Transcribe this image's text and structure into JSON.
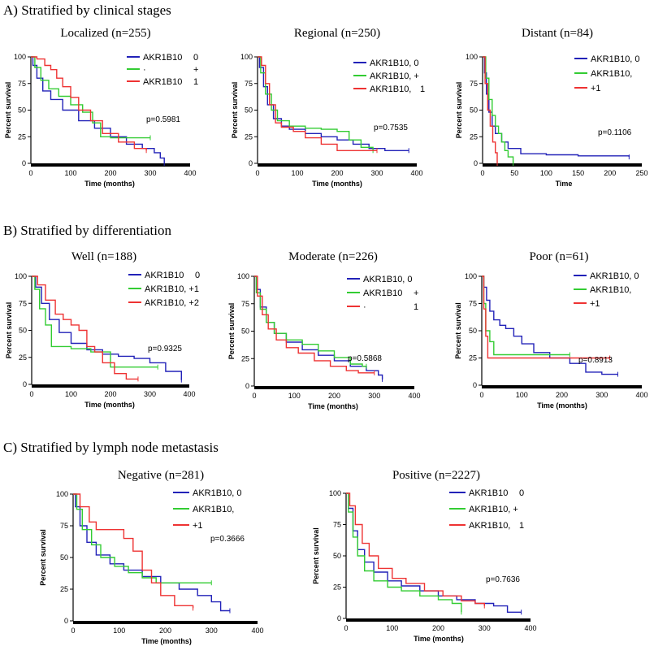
{
  "figure": {
    "section_a": "A) Stratified by clinical stages",
    "section_b": "B) Stratified by differentiation",
    "section_c": "C) Stratified by lymph node metastasis"
  },
  "colors": {
    "blue": "#2222b8",
    "green": "#33cc33",
    "red": "#ee3333",
    "axis": "#000000"
  },
  "chart_data": [
    {
      "id": "localized",
      "type": "line",
      "title": "Localized (n=255)",
      "xlabel": "Time (months)",
      "ylabel": "Percent survival",
      "xlim": [
        0,
        400
      ],
      "ylim": [
        0,
        100
      ],
      "xticks": [
        "0",
        "100",
        "200",
        "300",
        "400"
      ],
      "yticks": [
        "0",
        "25",
        "50",
        "75",
        "100"
      ],
      "pvalue": "p=0.5981",
      "legend": [
        {
          "color": "blue",
          "label": "AKR1B10",
          "tag": "0"
        },
        {
          "color": "green",
          "label": "·",
          "tag": "+"
        },
        {
          "color": "red",
          "label": "AKR1B10",
          "tag": "1"
        }
      ],
      "series": [
        {
          "name": "AKR1B10 0",
          "color": "blue",
          "x": [
            0,
            5,
            15,
            30,
            50,
            80,
            120,
            160,
            200,
            240,
            280,
            310,
            325,
            335
          ],
          "y": [
            100,
            92,
            80,
            68,
            60,
            50,
            40,
            33,
            25,
            18,
            14,
            10,
            5,
            0
          ]
        },
        {
          "name": "AKR1B10 +",
          "color": "green",
          "x": [
            0,
            10,
            25,
            45,
            70,
            100,
            130,
            155,
            175,
            200,
            250,
            300
          ],
          "y": [
            100,
            90,
            78,
            70,
            63,
            55,
            48,
            38,
            25,
            24,
            24,
            24
          ]
        },
        {
          "name": "AKR1B10 1",
          "color": "red",
          "x": [
            0,
            15,
            35,
            50,
            65,
            80,
            100,
            120,
            150,
            180,
            220,
            260,
            290
          ],
          "y": [
            100,
            98,
            92,
            88,
            80,
            72,
            62,
            50,
            40,
            28,
            20,
            14,
            12
          ]
        }
      ]
    },
    {
      "id": "regional",
      "type": "line",
      "title": "Regional (n=250)",
      "xlabel": "Time (months)",
      "ylabel": "Percent survival",
      "xlim": [
        0,
        400
      ],
      "ylim": [
        0,
        100
      ],
      "xticks": [
        "0",
        "100",
        "200",
        "300",
        "400"
      ],
      "yticks": [
        "0",
        "25",
        "50",
        "75",
        "100"
      ],
      "pvalue": "p=0.7535",
      "legend": [
        {
          "color": "blue",
          "label": "AKR1B10, 0",
          "tag": ""
        },
        {
          "color": "green",
          "label": "AKR1B10, +",
          "tag": ""
        },
        {
          "color": "red",
          "label": "AKR1B10,",
          "tag": "1"
        }
      ],
      "series": [
        {
          "name": "AKR1B10 0",
          "color": "blue",
          "x": [
            0,
            5,
            15,
            25,
            40,
            60,
            80,
            120,
            160,
            200,
            240,
            280,
            320,
            380
          ],
          "y": [
            100,
            90,
            72,
            55,
            42,
            35,
            32,
            28,
            25,
            22,
            18,
            14,
            12,
            12
          ]
        },
        {
          "name": "AKR1B10 +",
          "color": "green",
          "x": [
            0,
            8,
            20,
            35,
            50,
            80,
            120,
            160,
            200,
            230,
            260,
            290
          ],
          "y": [
            100,
            85,
            65,
            50,
            40,
            35,
            33,
            32,
            30,
            22,
            15,
            12
          ]
        },
        {
          "name": "AKR1B10 1",
          "color": "red",
          "x": [
            0,
            10,
            20,
            30,
            45,
            60,
            90,
            120,
            160,
            200,
            260,
            300
          ],
          "y": [
            100,
            92,
            75,
            55,
            38,
            34,
            30,
            24,
            18,
            12,
            12,
            12
          ]
        }
      ]
    },
    {
      "id": "distant",
      "type": "line",
      "title": "Distant (n=84)",
      "xlabel": "Time",
      "ylabel": "Percent survival",
      "xlim": [
        0,
        250
      ],
      "ylim": [
        0,
        100
      ],
      "xticks": [
        "0",
        "50",
        "100",
        "150",
        "200",
        "250"
      ],
      "yticks": [
        "0",
        "25",
        "50",
        "75",
        "100"
      ],
      "pvalue": "p=0.1106",
      "legend": [
        {
          "color": "blue",
          "label": "AKR1B10, 0",
          "tag": ""
        },
        {
          "color": "green",
          "label": "AKR1B10,",
          "tag": ""
        },
        {
          "color": "red",
          "label": "+1",
          "tag": ""
        }
      ],
      "series": [
        {
          "name": "AKR1B10 0",
          "color": "blue",
          "x": [
            0,
            3,
            6,
            10,
            15,
            20,
            30,
            40,
            60,
            100,
            150,
            230
          ],
          "y": [
            100,
            85,
            65,
            48,
            35,
            28,
            20,
            14,
            9,
            8,
            7,
            6
          ]
        },
        {
          "name": "AKR1B10 +",
          "color": "green",
          "x": [
            0,
            5,
            10,
            15,
            20,
            25,
            30,
            35,
            40,
            48
          ],
          "y": [
            100,
            80,
            60,
            45,
            35,
            28,
            20,
            12,
            6,
            0
          ]
        },
        {
          "name": "AKR1B10 1",
          "color": "red",
          "x": [
            0,
            4,
            8,
            12,
            16,
            20,
            23
          ],
          "y": [
            100,
            75,
            50,
            35,
            20,
            10,
            0
          ]
        }
      ]
    },
    {
      "id": "well",
      "type": "line",
      "title": "Well (n=188)",
      "xlabel": "Time (months)",
      "ylabel": "Percent survival",
      "xlim": [
        0,
        400
      ],
      "ylim": [
        0,
        100
      ],
      "xticks": [
        "0",
        "100",
        "200",
        "300",
        "400"
      ],
      "yticks": [
        "0",
        "25",
        "50",
        "75",
        "100"
      ],
      "pvalue": "p=0.9325",
      "legend": [
        {
          "color": "blue",
          "label": "AKR1B10",
          "tag": "0"
        },
        {
          "color": "green",
          "label": "AKR1B10, +1",
          "tag": ""
        },
        {
          "color": "red",
          "label": "AKR1B10, +2",
          "tag": ""
        }
      ],
      "series": [
        {
          "name": "AKR1B10 0",
          "color": "blue",
          "x": [
            0,
            10,
            25,
            45,
            70,
            100,
            140,
            180,
            220,
            260,
            300,
            340,
            380
          ],
          "y": [
            100,
            90,
            75,
            60,
            48,
            38,
            32,
            28,
            26,
            24,
            20,
            12,
            4
          ]
        },
        {
          "name": "AKR1B10 +1",
          "color": "green",
          "x": [
            0,
            8,
            20,
            35,
            50,
            70,
            100,
            150,
            200,
            250,
            320
          ],
          "y": [
            100,
            88,
            70,
            55,
            35,
            35,
            33,
            30,
            16,
            16,
            16
          ]
        },
        {
          "name": "AKR1B10 +2",
          "color": "red",
          "x": [
            0,
            15,
            35,
            60,
            80,
            100,
            120,
            140,
            160,
            180,
            210,
            240,
            270
          ],
          "y": [
            100,
            92,
            78,
            65,
            60,
            55,
            50,
            35,
            30,
            20,
            10,
            5,
            5
          ]
        }
      ]
    },
    {
      "id": "moderate",
      "type": "line",
      "title": "Moderate (n=226)",
      "xlabel": "Time (months)",
      "ylabel": "Percent survival",
      "xlim": [
        0,
        400
      ],
      "ylim": [
        0,
        100
      ],
      "xticks": [
        "0",
        "100",
        "200",
        "300",
        "400"
      ],
      "yticks": [
        "0",
        "25",
        "50",
        "75",
        "100"
      ],
      "pvalue": "p=0.5868",
      "legend": [
        {
          "color": "blue",
          "label": "AKR1B10, 0",
          "tag": ""
        },
        {
          "color": "green",
          "label": "AKR1B10",
          "tag": "+"
        },
        {
          "color": "red",
          "label": "·",
          "tag": "1"
        }
      ],
      "series": [
        {
          "name": "AKR1B10 0",
          "color": "blue",
          "x": [
            0,
            5,
            15,
            30,
            50,
            80,
            120,
            160,
            200,
            240,
            280,
            310,
            320
          ],
          "y": [
            100,
            88,
            72,
            58,
            48,
            40,
            33,
            28,
            23,
            18,
            14,
            10,
            6
          ]
        },
        {
          "name": "AKR1B10 +",
          "color": "green",
          "x": [
            0,
            5,
            15,
            30,
            50,
            80,
            120,
            160,
            200,
            240,
            270,
            280
          ],
          "y": [
            100,
            85,
            70,
            58,
            48,
            42,
            38,
            32,
            26,
            20,
            18,
            18
          ]
        },
        {
          "name": "AKR1B10 1",
          "color": "red",
          "x": [
            0,
            8,
            20,
            35,
            55,
            80,
            110,
            150,
            190,
            230,
            260,
            300
          ],
          "y": [
            100,
            82,
            65,
            52,
            42,
            35,
            30,
            23,
            18,
            14,
            12,
            12
          ]
        }
      ]
    },
    {
      "id": "poor",
      "type": "line",
      "title": "Poor (n=61)",
      "xlabel": "Time (months)",
      "ylabel": "Percent survival",
      "xlim": [
        0,
        400
      ],
      "ylim": [
        0,
        100
      ],
      "xticks": [
        "0",
        "100",
        "200",
        "300",
        "400"
      ],
      "yticks": [
        "0",
        "25",
        "50",
        "75",
        "100"
      ],
      "pvalue": "p=0.8913",
      "legend": [
        {
          "color": "blue",
          "label": "AKR1B10, 0",
          "tag": ""
        },
        {
          "color": "green",
          "label": "AKR1B10,",
          "tag": ""
        },
        {
          "color": "red",
          "label": "+1",
          "tag": ""
        }
      ],
      "series": [
        {
          "name": "AKR1B10 0",
          "color": "blue",
          "x": [
            0,
            5,
            12,
            20,
            30,
            45,
            60,
            80,
            100,
            130,
            170,
            220,
            260,
            300,
            340
          ],
          "y": [
            100,
            90,
            78,
            68,
            60,
            55,
            52,
            45,
            38,
            30,
            25,
            20,
            12,
            10,
            10
          ]
        },
        {
          "name": "AKR1B10 +",
          "color": "green",
          "x": [
            0,
            5,
            10,
            20,
            30,
            60,
            100,
            150,
            220
          ],
          "y": [
            100,
            75,
            50,
            40,
            28,
            28,
            28,
            28,
            28
          ]
        },
        {
          "name": "AKR1B10 1",
          "color": "red",
          "x": [
            0,
            5,
            10,
            15,
            200,
            320
          ],
          "y": [
            100,
            70,
            45,
            25,
            25,
            25
          ]
        }
      ]
    },
    {
      "id": "negative",
      "type": "line",
      "title": "Negative (n=281)",
      "xlabel": "Time (months)",
      "ylabel": "Percent survival",
      "xlim": [
        0,
        400
      ],
      "ylim": [
        0,
        100
      ],
      "xticks": [
        "0",
        "100",
        "200",
        "300",
        "400"
      ],
      "yticks": [
        "0",
        "25",
        "50",
        "75",
        "100"
      ],
      "pvalue": "p=0.3666",
      "legend": [
        {
          "color": "blue",
          "label": "AKR1B10, 0",
          "tag": ""
        },
        {
          "color": "green",
          "label": "AKR1B10,",
          "tag": ""
        },
        {
          "color": "red",
          "label": "+1",
          "tag": ""
        }
      ],
      "series": [
        {
          "name": "AKR1B10 0",
          "color": "blue",
          "x": [
            0,
            5,
            15,
            30,
            50,
            80,
            110,
            150,
            190,
            230,
            270,
            300,
            320,
            340
          ],
          "y": [
            100,
            90,
            75,
            62,
            52,
            45,
            40,
            35,
            30,
            25,
            20,
            15,
            8,
            8
          ]
        },
        {
          "name": "AKR1B10 +",
          "color": "green",
          "x": [
            0,
            8,
            20,
            40,
            60,
            90,
            120,
            150,
            180,
            220,
            260,
            300
          ],
          "y": [
            100,
            88,
            72,
            60,
            50,
            43,
            38,
            34,
            30,
            30,
            30,
            30
          ]
        },
        {
          "name": "AKR1B10 1",
          "color": "red",
          "x": [
            0,
            15,
            35,
            50,
            80,
            110,
            130,
            150,
            170,
            190,
            220,
            260
          ],
          "y": [
            100,
            90,
            78,
            72,
            72,
            65,
            55,
            40,
            30,
            20,
            12,
            10
          ]
        }
      ]
    },
    {
      "id": "positive",
      "type": "line",
      "title": "Positive (n=2227)",
      "xlabel": "Time (months)",
      "ylabel": "Percent survival",
      "xlim": [
        0,
        400
      ],
      "ylim": [
        0,
        100
      ],
      "xticks": [
        "0",
        "100",
        "200",
        "300",
        "400"
      ],
      "yticks": [
        "0",
        "25",
        "50",
        "75",
        "100"
      ],
      "pvalue": "p=0.7636",
      "legend": [
        {
          "color": "blue",
          "label": "AKR1B10",
          "tag": "0"
        },
        {
          "color": "green",
          "label": "AKR1B10, +",
          "tag": ""
        },
        {
          "color": "red",
          "label": "AKR1B10,",
          "tag": "1"
        }
      ],
      "series": [
        {
          "name": "AKR1B10 0",
          "color": "blue",
          "x": [
            0,
            5,
            15,
            25,
            40,
            60,
            90,
            120,
            160,
            200,
            240,
            280,
            320,
            350,
            380
          ],
          "y": [
            100,
            88,
            70,
            55,
            45,
            37,
            30,
            26,
            22,
            18,
            15,
            12,
            10,
            5,
            5
          ]
        },
        {
          "name": "AKR1B10 +",
          "color": "green",
          "x": [
            0,
            5,
            15,
            25,
            40,
            60,
            90,
            120,
            160,
            200,
            230,
            250
          ],
          "y": [
            100,
            85,
            65,
            50,
            38,
            30,
            25,
            22,
            18,
            15,
            12,
            5
          ]
        },
        {
          "name": "AKR1B10 1",
          "color": "red",
          "x": [
            0,
            8,
            20,
            35,
            50,
            70,
            100,
            130,
            170,
            210,
            250,
            280,
            300
          ],
          "y": [
            100,
            90,
            75,
            60,
            50,
            40,
            32,
            28,
            22,
            18,
            14,
            12,
            10
          ]
        }
      ]
    }
  ]
}
